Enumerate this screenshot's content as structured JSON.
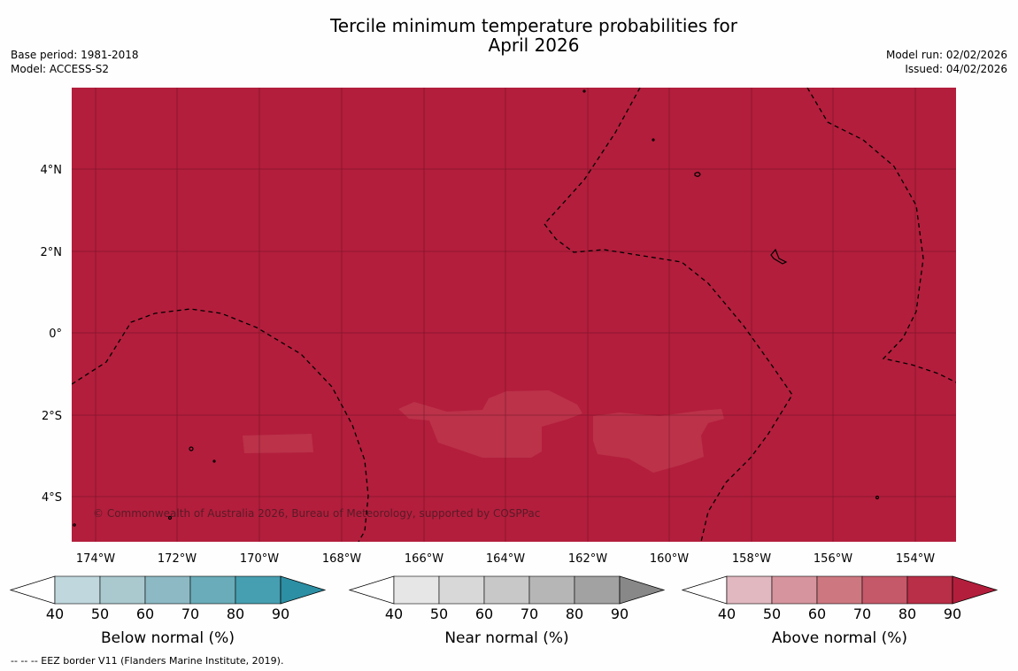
{
  "title": {
    "line1": "Tercile minimum temperature probabilities for",
    "line2": "April 2026"
  },
  "meta_left": {
    "base_period": "Base period: 1981-2018",
    "model": "Model: ACCESS-S2"
  },
  "meta_right": {
    "model_run": "Model run: 02/02/2026",
    "issued": "Issued: 04/02/2026"
  },
  "map": {
    "lon_ticks": [
      "174°W",
      "172°W",
      "170°W",
      "168°W",
      "166°W",
      "164°W",
      "162°W",
      "160°W",
      "158°W",
      "156°W",
      "154°W"
    ],
    "lat_ticks": [
      "4°N",
      "2°N",
      "0°",
      "2°S",
      "4°S"
    ],
    "copyright": "© Commonwealth of Australia 2026, Bureau of Meteorology, supported by COSPPac",
    "colors": {
      "above_90": "#b31e3c",
      "above_80": "#bb3249",
      "border": "#000000",
      "grid": "#5a0e1e"
    }
  },
  "colorbars": [
    {
      "label": "Below normal (%)",
      "ticks": [
        "40",
        "50",
        "60",
        "70",
        "80",
        "90"
      ],
      "colors": [
        "#ffffff",
        "#bfd7dd",
        "#a9c9cf",
        "#8cb9c4",
        "#6aacb9",
        "#469fb0",
        "#2c8fa4"
      ]
    },
    {
      "label": "Near normal (%)",
      "ticks": [
        "40",
        "50",
        "60",
        "70",
        "80",
        "90"
      ],
      "colors": [
        "#ffffff",
        "#e6e6e6",
        "#d8d8d8",
        "#c8c8c8",
        "#b6b6b6",
        "#a2a2a2",
        "#888888"
      ]
    },
    {
      "label": "Above normal (%)",
      "ticks": [
        "40",
        "50",
        "60",
        "70",
        "80",
        "90"
      ],
      "colors": [
        "#ffffff",
        "#e1b8bf",
        "#d6949e",
        "#cd7881",
        "#c55869",
        "#b92f47",
        "#b31e3c"
      ]
    }
  ],
  "footnote": "--  --  -- EEZ border V11 (Flanders Marine Institute, 2019)."
}
